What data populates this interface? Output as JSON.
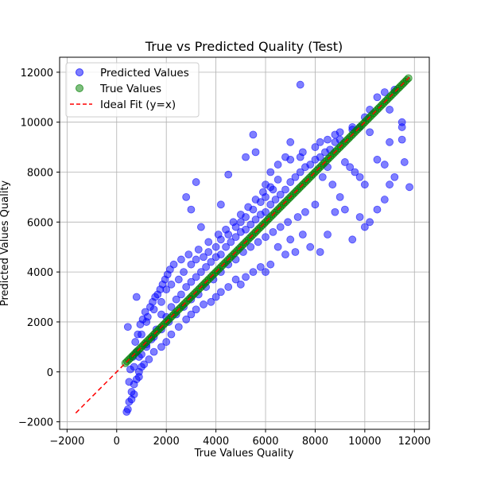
{
  "chart_data": {
    "type": "scatter",
    "title": "True vs Predicted Quality (Test)",
    "xlabel": "True Values Quality",
    "ylabel": "Predicted Values Quality",
    "xlim": [
      -2300,
      12600
    ],
    "ylim": [
      -2300,
      12600
    ],
    "xticks": [
      -2000,
      0,
      2000,
      4000,
      6000,
      8000,
      10000,
      12000
    ],
    "yticks": [
      -2000,
      0,
      2000,
      4000,
      6000,
      8000,
      10000,
      12000
    ],
    "xtick_labels": [
      "−2000",
      "0",
      "2000",
      "4000",
      "6000",
      "8000",
      "10000",
      "12000"
    ],
    "ytick_labels": [
      "−2000",
      "0",
      "2000",
      "4000",
      "6000",
      "8000",
      "10000",
      "12000"
    ],
    "grid": true,
    "legend_position": "upper-left",
    "series": [
      {
        "name": "Predicted Values",
        "kind": "scatter",
        "color": "#0000ff",
        "points": [
          [
            400,
            -1600
          ],
          [
            450,
            -1500
          ],
          [
            500,
            -1200
          ],
          [
            600,
            -800
          ],
          [
            700,
            -500
          ],
          [
            800,
            -300
          ],
          [
            900,
            0
          ],
          [
            1000,
            200
          ],
          [
            450,
            1800
          ],
          [
            800,
            3000
          ],
          [
            1000,
            1500
          ],
          [
            1200,
            2000
          ],
          [
            1500,
            2500
          ],
          [
            1800,
            2800
          ],
          [
            2000,
            3300
          ],
          [
            2200,
            3500
          ],
          [
            2500,
            3700
          ],
          [
            2700,
            4000
          ],
          [
            3000,
            4300
          ],
          [
            3200,
            4500
          ],
          [
            3500,
            4600
          ],
          [
            3700,
            4800
          ],
          [
            4000,
            5000
          ],
          [
            4200,
            5300
          ],
          [
            4500,
            5500
          ],
          [
            4800,
            5800
          ],
          [
            5000,
            6000
          ],
          [
            5200,
            6200
          ],
          [
            5500,
            6500
          ],
          [
            5800,
            6800
          ],
          [
            6000,
            7000
          ],
          [
            6300,
            7300
          ],
          [
            2800,
            7000
          ],
          [
            3000,
            6500
          ],
          [
            3200,
            7600
          ],
          [
            3400,
            5800
          ],
          [
            4200,
            6700
          ],
          [
            4500,
            7900
          ],
          [
            5200,
            8600
          ],
          [
            5500,
            9500
          ],
          [
            5600,
            8800
          ],
          [
            6000,
            7500
          ],
          [
            6200,
            8000
          ],
          [
            6500,
            8300
          ],
          [
            6800,
            8600
          ],
          [
            7000,
            8500
          ],
          [
            7400,
            11500
          ],
          [
            7500,
            8800
          ],
          [
            8000,
            9000
          ],
          [
            8200,
            9200
          ],
          [
            8500,
            9300
          ],
          [
            8800,
            9500
          ],
          [
            9000,
            9600
          ],
          [
            9500,
            9800
          ],
          [
            10000,
            10200
          ],
          [
            10200,
            10500
          ],
          [
            10500,
            11000
          ],
          [
            10800,
            11200
          ],
          [
            11000,
            10500
          ],
          [
            11200,
            11300
          ],
          [
            11500,
            10000
          ],
          [
            11500,
            9800
          ],
          [
            11600,
            8400
          ],
          [
            11800,
            7400
          ],
          [
            11500,
            9300
          ],
          [
            11200,
            7800
          ],
          [
            11000,
            7500
          ],
          [
            10800,
            6900
          ],
          [
            10500,
            6500
          ],
          [
            10200,
            6000
          ],
          [
            10000,
            5800
          ],
          [
            9800,
            6200
          ],
          [
            9500,
            5300
          ],
          [
            9200,
            6500
          ],
          [
            9000,
            7000
          ],
          [
            8800,
            6400
          ],
          [
            8500,
            5500
          ],
          [
            8200,
            4800
          ],
          [
            8000,
            6700
          ],
          [
            7800,
            5000
          ],
          [
            7500,
            5500
          ],
          [
            7200,
            4800
          ],
          [
            7000,
            5300
          ],
          [
            6800,
            4700
          ],
          [
            6500,
            5000
          ],
          [
            6200,
            4300
          ],
          [
            6000,
            4000
          ],
          [
            5800,
            4200
          ],
          [
            5500,
            4000
          ],
          [
            5200,
            3800
          ],
          [
            5000,
            3500
          ],
          [
            4800,
            3700
          ],
          [
            4500,
            3400
          ],
          [
            4200,
            3200
          ],
          [
            4000,
            3000
          ],
          [
            3800,
            2800
          ],
          [
            3500,
            2700
          ],
          [
            3200,
            2500
          ],
          [
            3000,
            2300
          ],
          [
            2800,
            2100
          ],
          [
            2500,
            1800
          ],
          [
            2200,
            1500
          ],
          [
            2000,
            1200
          ],
          [
            1800,
            1000
          ],
          [
            1500,
            800
          ],
          [
            1300,
            500
          ],
          [
            1100,
            300
          ],
          [
            900,
            -200
          ],
          [
            700,
            -900
          ],
          [
            600,
            -1100
          ],
          [
            800,
            800
          ],
          [
            1000,
            700
          ],
          [
            1200,
            1100
          ],
          [
            1400,
            1300
          ],
          [
            1600,
            1700
          ],
          [
            1800,
            2300
          ],
          [
            2000,
            2200
          ],
          [
            2200,
            2600
          ],
          [
            2400,
            2900
          ],
          [
            2600,
            3100
          ],
          [
            2800,
            3400
          ],
          [
            3000,
            3600
          ],
          [
            3200,
            3800
          ],
          [
            3400,
            4000
          ],
          [
            3600,
            4200
          ],
          [
            3800,
            4400
          ],
          [
            4000,
            4600
          ],
          [
            4200,
            4700
          ],
          [
            4400,
            5000
          ],
          [
            4600,
            5200
          ],
          [
            4800,
            5400
          ],
          [
            5000,
            5600
          ],
          [
            5200,
            5700
          ],
          [
            5400,
            5900
          ],
          [
            5600,
            6100
          ],
          [
            5800,
            6300
          ],
          [
            6000,
            6400
          ],
          [
            6200,
            6700
          ],
          [
            6400,
            6900
          ],
          [
            6600,
            7100
          ],
          [
            6800,
            7300
          ],
          [
            7000,
            7600
          ],
          [
            7200,
            7800
          ],
          [
            7400,
            8000
          ],
          [
            7600,
            8200
          ],
          [
            7800,
            8300
          ],
          [
            8000,
            8500
          ],
          [
            8200,
            8600
          ],
          [
            8400,
            8800
          ],
          [
            8600,
            8900
          ],
          [
            8800,
            9200
          ],
          [
            9000,
            9300
          ],
          [
            7000,
            9200
          ],
          [
            7400,
            8600
          ],
          [
            9500,
            9700
          ],
          [
            9800,
            9800
          ],
          [
            10200,
            9600
          ],
          [
            10500,
            8500
          ],
          [
            10800,
            8300
          ],
          [
            11000,
            9200
          ],
          [
            9200,
            8400
          ],
          [
            9400,
            8200
          ],
          [
            9600,
            8000
          ],
          [
            9800,
            7800
          ],
          [
            10000,
            7500
          ],
          [
            8500,
            8200
          ],
          [
            8300,
            7800
          ],
          [
            8700,
            7500
          ],
          [
            7600,
            6400
          ],
          [
            7300,
            6200
          ],
          [
            6900,
            6000
          ],
          [
            6600,
            5800
          ],
          [
            6300,
            5600
          ],
          [
            6000,
            5400
          ],
          [
            5700,
            5200
          ],
          [
            5400,
            5000
          ],
          [
            5100,
            4800
          ],
          [
            4800,
            4500
          ],
          [
            4500,
            4300
          ],
          [
            4200,
            4000
          ],
          [
            3900,
            3700
          ],
          [
            3600,
            3400
          ],
          [
            3300,
            3100
          ],
          [
            3000,
            2900
          ],
          [
            2700,
            2600
          ],
          [
            2400,
            2300
          ],
          [
            2100,
            2000
          ],
          [
            1800,
            1700
          ],
          [
            1500,
            1400
          ],
          [
            1200,
            1000
          ],
          [
            900,
            600
          ],
          [
            700,
            200
          ],
          [
            500,
            -400
          ],
          [
            550,
            100
          ],
          [
            650,
            600
          ],
          [
            750,
            1200
          ],
          [
            850,
            1500
          ],
          [
            950,
            1900
          ],
          [
            1050,
            2100
          ],
          [
            1150,
            2400
          ],
          [
            1250,
            2200
          ],
          [
            1350,
            2600
          ],
          [
            1450,
            2800
          ],
          [
            1550,
            3000
          ],
          [
            1650,
            3100
          ],
          [
            1750,
            3300
          ],
          [
            1850,
            3500
          ],
          [
            1950,
            3700
          ],
          [
            2050,
            3900
          ],
          [
            2150,
            4100
          ],
          [
            2300,
            4300
          ],
          [
            2600,
            4500
          ],
          [
            2900,
            4700
          ],
          [
            3300,
            4900
          ],
          [
            3700,
            5200
          ],
          [
            4100,
            5500
          ],
          [
            4400,
            5700
          ],
          [
            4700,
            6000
          ],
          [
            5000,
            6300
          ],
          [
            5300,
            6600
          ],
          [
            5600,
            6900
          ],
          [
            5900,
            7200
          ],
          [
            6200,
            7400
          ],
          [
            6500,
            7700
          ]
        ]
      },
      {
        "name": "True Values",
        "kind": "scatter",
        "color": "#008000",
        "range": [
          350,
          11800
        ]
      },
      {
        "name": "Ideal Fit (y=x)",
        "kind": "line",
        "style": "dashed",
        "color": "#ff0000",
        "range": [
          -1650,
          11800
        ]
      }
    ]
  }
}
